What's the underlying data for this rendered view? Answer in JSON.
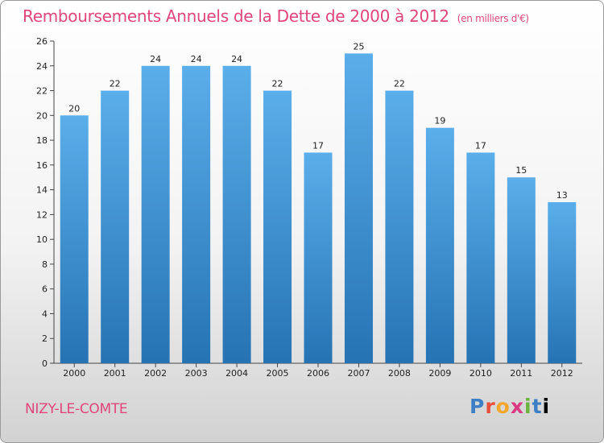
{
  "title": "Remboursements Annuels de la Dette de 2000 à 2012",
  "unit": "(en milliers d'€)",
  "commune": "NIZY-LE-COMTE",
  "logo_text": "Proxiti",
  "colors": {
    "title": "#e0457b",
    "bar_top": "#5aaeea",
    "bar_bottom": "#2673b4"
  },
  "chart_data": {
    "type": "bar",
    "title": "Remboursements Annuels de la Dette de 2000 à 2012",
    "subtitle": "(en milliers d'€)",
    "categories": [
      "2000",
      "2001",
      "2002",
      "2003",
      "2004",
      "2005",
      "2006",
      "2007",
      "2008",
      "2009",
      "2010",
      "2011",
      "2012"
    ],
    "values": [
      20,
      22,
      24,
      24,
      24,
      22,
      17,
      25,
      22,
      19,
      17,
      15,
      13
    ],
    "ylim": [
      0,
      26
    ],
    "yticks": [
      0,
      2,
      4,
      6,
      8,
      10,
      12,
      14,
      16,
      18,
      20,
      22,
      24,
      26
    ],
    "grid": false,
    "legend": "none"
  }
}
